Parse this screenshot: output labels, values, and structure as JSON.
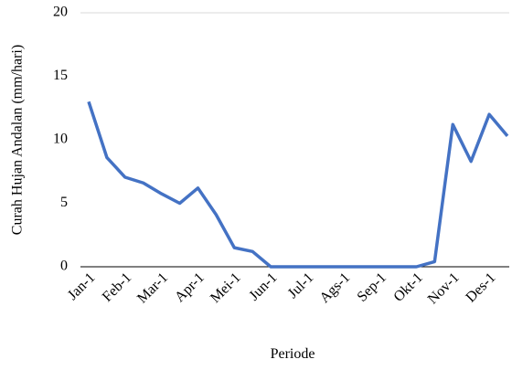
{
  "chart_data": {
    "type": "line",
    "x_label": "Periode",
    "y_label": "Curah Hujan Andalan (mm/hari)",
    "categories": [
      "Jan-1",
      null,
      "Feb-1",
      null,
      "Mar-1",
      null,
      "Apr-1",
      null,
      "Mei-1",
      null,
      "Jun-1",
      null,
      "Jul-1",
      null,
      "Ags-1",
      null,
      "Sep-1",
      null,
      "Okt-1",
      null,
      "Nov-1",
      null,
      "Des-1",
      null
    ],
    "series": [
      {
        "name": "Curah Hujan Andalan",
        "color": "#4472c4",
        "values": [
          13.0,
          8.6,
          7.05,
          6.6,
          5.75,
          5.0,
          6.2,
          4.1,
          1.5,
          1.2,
          0,
          0,
          0,
          0,
          0,
          0,
          0,
          0,
          0,
          0.4,
          11.2,
          8.3,
          12.0,
          10.3
        ]
      }
    ],
    "ylim": [
      0,
      20
    ],
    "yticks": [
      0,
      5,
      10,
      15,
      20
    ]
  }
}
